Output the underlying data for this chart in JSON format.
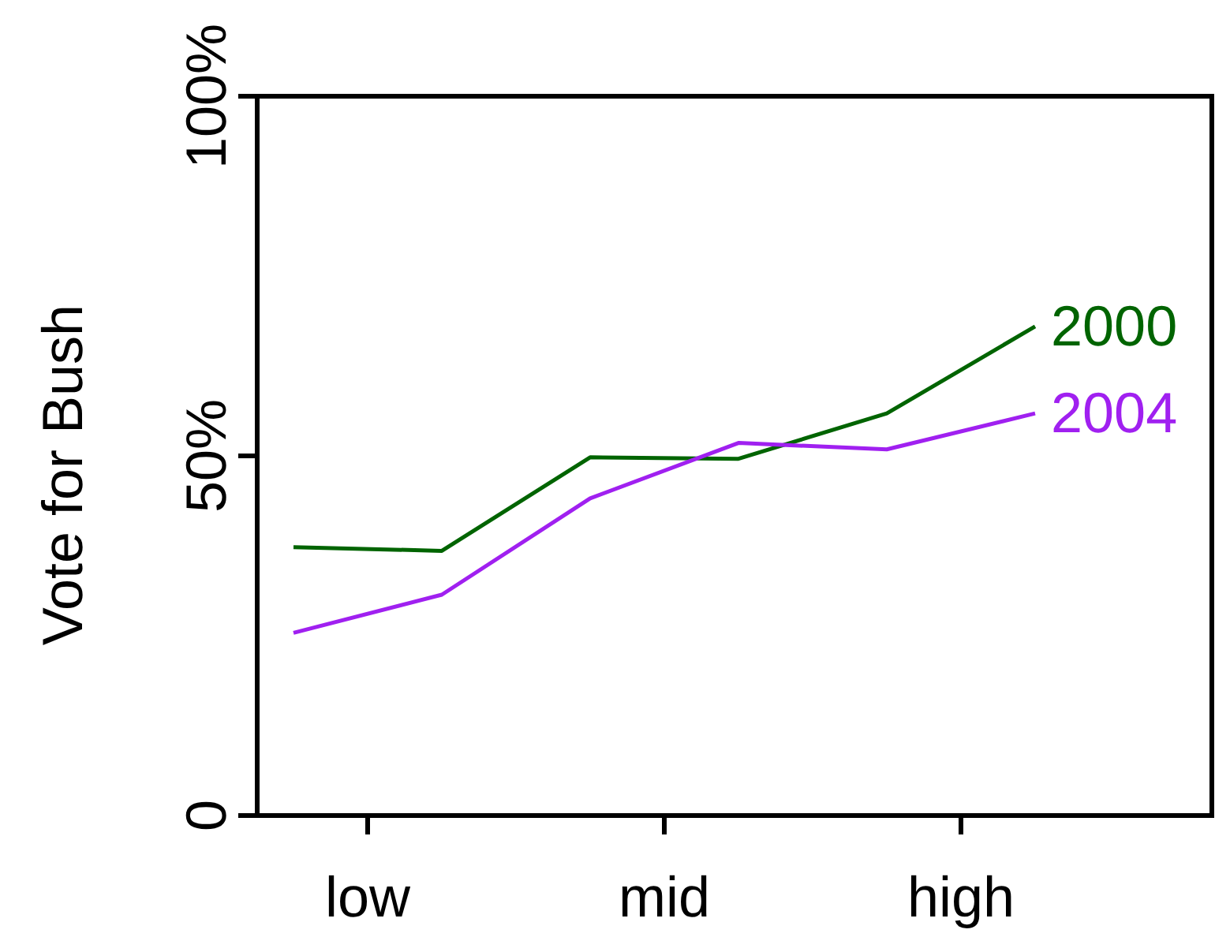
{
  "chart_data": {
    "type": "line",
    "ylabel": "Vote for Bush",
    "categories": [
      null,
      null,
      null,
      null,
      null,
      null
    ],
    "annotations": [
      "low",
      "mid",
      "high"
    ],
    "ylim": [
      0,
      100
    ],
    "yticks": [
      0,
      {
        "value": 50,
        "label": "50%"
      },
      {
        "value": 100,
        "label": "100%"
      }
    ],
    "grid": false,
    "legend": false,
    "series": [
      {
        "name": "2000",
        "color": "#006400",
        "values": [
          37.3,
          36.8,
          49.8,
          49.6,
          55.9,
          68
        ]
      },
      {
        "name": "2004",
        "color": "#a020f0",
        "values": [
          25.4,
          30.7,
          44.1,
          51.8,
          50.9,
          55.9
        ]
      }
    ]
  }
}
